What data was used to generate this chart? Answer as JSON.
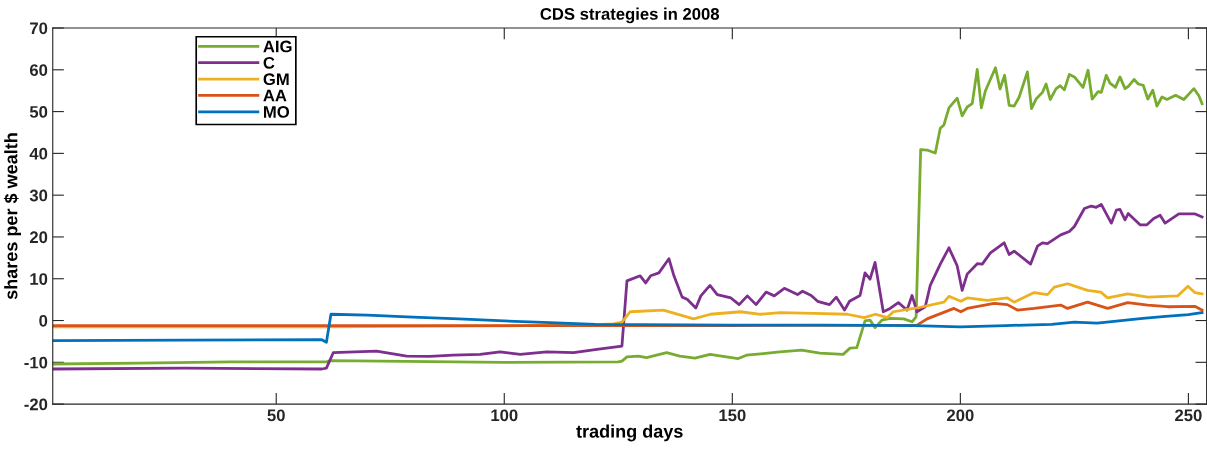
{
  "chart_data": {
    "type": "line",
    "title": "CDS strategies in 2008",
    "xlabel": "trading days",
    "ylabel": "shares per $ wealth",
    "xlim": [
      1,
      254
    ],
    "xticks": [
      50,
      100,
      150,
      200,
      250
    ],
    "ylim": [
      -20,
      70
    ],
    "yticks": [
      -20,
      -10,
      0,
      10,
      20,
      30,
      40,
      50,
      60,
      70
    ],
    "grid": false,
    "legend": "top left",
    "marker": "none",
    "line_style": "solid",
    "series": [
      {
        "name": "AIG",
        "color": "#77ac30",
        "x": [
          1,
          20,
          40,
          61,
          62,
          100,
          125,
          125.8,
          126.9,
          129.4,
          131.2,
          135.6,
          138.5,
          141.8,
          145.1,
          148.7,
          151.3,
          153.1,
          156.8,
          160.4,
          165.2,
          169.2,
          174.3,
          175.8,
          177.3,
          179.1,
          180.2,
          181.3,
          182.8,
          184.6,
          187.6,
          189.4,
          190.3,
          191.3,
          192.7,
          194.5,
          195.6,
          196.4,
          197.5,
          199.3,
          200.4,
          201.5,
          202.6,
          203.7,
          204.6,
          205.5,
          207.7,
          208.7,
          209.7,
          210.7,
          211.8,
          212.9,
          214.7,
          215.6,
          216.6,
          218.0,
          218.8,
          219.7,
          221.0,
          221.9,
          222.8,
          223.9,
          225.0,
          226.9,
          228.0,
          228.9,
          230.2,
          230.9,
          232.0,
          232.8,
          234.0,
          235.0,
          236.1,
          236.8,
          238.1,
          239.0,
          240.1,
          241.1,
          242.2,
          243.1,
          244.2,
          245.3,
          247.2,
          249.0,
          251.2,
          252.3,
          253
        ],
        "values": [
          -10.4,
          -10.2,
          -9.9,
          -9.9,
          -9.6,
          -10.0,
          -9.9,
          -9.7,
          -8.7,
          -8.5,
          -8.9,
          -7.7,
          -8.5,
          -9.0,
          -8.1,
          -8.7,
          -9.1,
          -8.3,
          -7.9,
          -7.5,
          -7.1,
          -7.8,
          -8.1,
          -6.6,
          -6.5,
          -0.1,
          0.1,
          -1.7,
          0.1,
          0.5,
          0.4,
          -0.3,
          0.9,
          40.9,
          40.8,
          40.1,
          46.0,
          46.8,
          50.9,
          53.2,
          49.0,
          51.1,
          51.9,
          60.1,
          50.9,
          55.0,
          60.5,
          55.4,
          58.7,
          51.5,
          51.3,
          53.5,
          59.5,
          50.7,
          53.0,
          54.6,
          56.6,
          52.9,
          55.5,
          56.2,
          55.2,
          58.9,
          58.3,
          55.8,
          59.9,
          53.0,
          54.8,
          54.6,
          58.7,
          56.8,
          55.8,
          58.3,
          55.5,
          56.0,
          57.7,
          56.6,
          56.3,
          53.0,
          55.1,
          51.3,
          53.5,
          52.9,
          53.9,
          52.9,
          55.5,
          53.8,
          51.9
        ]
      },
      {
        "name": "C",
        "color": "#7e2f8e",
        "x": [
          1,
          30,
          60,
          61,
          62.5,
          72,
          78.6,
          83.7,
          88.8,
          94.7,
          99.1,
          103.5,
          109.3,
          115.2,
          120.3,
          125.8,
          126.9,
          129.8,
          131.0,
          132.1,
          133.9,
          136.1,
          137.2,
          139.0,
          140.1,
          142.0,
          143.1,
          145.1,
          146.7,
          149.7,
          151.5,
          153.3,
          155.2,
          157.4,
          159.2,
          161.4,
          164.3,
          165.4,
          167.3,
          168.7,
          171.3,
          172.8,
          174.6,
          175.7,
          178.0,
          179.1,
          180.2,
          181.3,
          183.1,
          184.6,
          186.4,
          188.3,
          189.4,
          190.5,
          192.3,
          193.4,
          195.6,
          197.5,
          199.3,
          200.4,
          201.5,
          203.7,
          204.8,
          206.6,
          209.6,
          210.7,
          211.8,
          215.4,
          216.9,
          218.0,
          219.1,
          222.0,
          223.9,
          225.0,
          227.2,
          228.7,
          229.8,
          230.9,
          233.1,
          234.2,
          235.0,
          236.1,
          236.8,
          239.4,
          240.9,
          242.4,
          243.8,
          244.9,
          247.9,
          251.5,
          253
        ],
        "values": [
          -11.6,
          -11.4,
          -11.6,
          -11.4,
          -7.7,
          -7.3,
          -8.5,
          -8.6,
          -8.3,
          -8.1,
          -7.5,
          -8.1,
          -7.5,
          -7.7,
          -6.9,
          -6.1,
          9.5,
          10.7,
          9.0,
          10.7,
          11.4,
          14.8,
          10.7,
          5.6,
          5.1,
          3.0,
          5.9,
          8.4,
          6.2,
          5.4,
          3.8,
          5.9,
          3.8,
          6.8,
          5.9,
          7.7,
          6.2,
          7.0,
          6.0,
          4.6,
          3.8,
          5.6,
          2.5,
          4.6,
          6.0,
          11.4,
          9.9,
          13.9,
          2.1,
          2.9,
          4.3,
          2.5,
          6.0,
          2.1,
          3.3,
          8.4,
          13.5,
          17.4,
          13.1,
          7.2,
          11.1,
          13.6,
          13.5,
          16.2,
          18.6,
          15.8,
          16.6,
          13.5,
          17.8,
          18.6,
          18.4,
          20.5,
          21.3,
          22.5,
          26.8,
          27.4,
          27.1,
          27.8,
          23.3,
          26.4,
          26.6,
          24.1,
          25.6,
          22.9,
          22.9,
          24.4,
          25.2,
          23.3,
          25.5,
          25.5,
          24.8
        ]
      },
      {
        "name": "GM",
        "color": "#edb120",
        "x": [
          1,
          60,
          100,
          120,
          124,
          125.8,
          127.6,
          134.9,
          141.5,
          145.2,
          151.8,
          156.2,
          160.6,
          167.9,
          175.2,
          178.9,
          181.4,
          184.0,
          185.3,
          190.5,
          196.4,
          197.5,
          200.1,
          201.5,
          205.9,
          210.3,
          211.8,
          216.2,
          219.1,
          220.6,
          223.5,
          227.9,
          230.8,
          232.3,
          236.7,
          241.1,
          247.7,
          249.9,
          251.4,
          253
        ],
        "values": [
          -1.5,
          -1.5,
          -1.3,
          -1.0,
          -0.8,
          -0.4,
          2.1,
          2.5,
          0.4,
          1.5,
          2.1,
          1.5,
          1.9,
          1.7,
          1.5,
          0.7,
          1.5,
          0.7,
          2.1,
          3.0,
          4.4,
          5.8,
          4.6,
          5.4,
          4.8,
          5.4,
          4.4,
          6.7,
          6.2,
          8.0,
          8.8,
          7.2,
          6.8,
          5.4,
          6.4,
          5.6,
          5.9,
          8.2,
          6.7,
          6.4
        ]
      },
      {
        "name": "AA",
        "color": "#d95319",
        "x": [
          1,
          60,
          120,
          150,
          190.5,
          192.7,
          198.6,
          200.1,
          201.5,
          207.4,
          210.3,
          212.5,
          216.2,
          222.0,
          223.5,
          227.9,
          232.3,
          236.7,
          241.1,
          245.5,
          251.4,
          253
        ],
        "values": [
          -1.2,
          -1.2,
          -1.2,
          -1.2,
          -1.1,
          0.4,
          2.9,
          2.1,
          2.9,
          4.1,
          3.8,
          2.5,
          2.9,
          3.7,
          2.9,
          4.4,
          2.9,
          4.3,
          3.7,
          3.3,
          3.4,
          2.5
        ]
      },
      {
        "name": "MO",
        "color": "#0072bd",
        "x": [
          1,
          30,
          60,
          61,
          62,
          70,
          80,
          90,
          100,
          110,
          120,
          130,
          150,
          170,
          190,
          200,
          210,
          220,
          225,
          230,
          240,
          245,
          250,
          253
        ],
        "values": [
          -4.8,
          -4.7,
          -4.6,
          -5.2,
          1.5,
          1.3,
          0.8,
          0.4,
          -0.1,
          -0.5,
          -0.9,
          -1.0,
          -1.1,
          -1.1,
          -1.2,
          -1.5,
          -1.2,
          -0.9,
          -0.4,
          -0.6,
          0.5,
          1.0,
          1.4,
          1.9
        ]
      }
    ]
  }
}
